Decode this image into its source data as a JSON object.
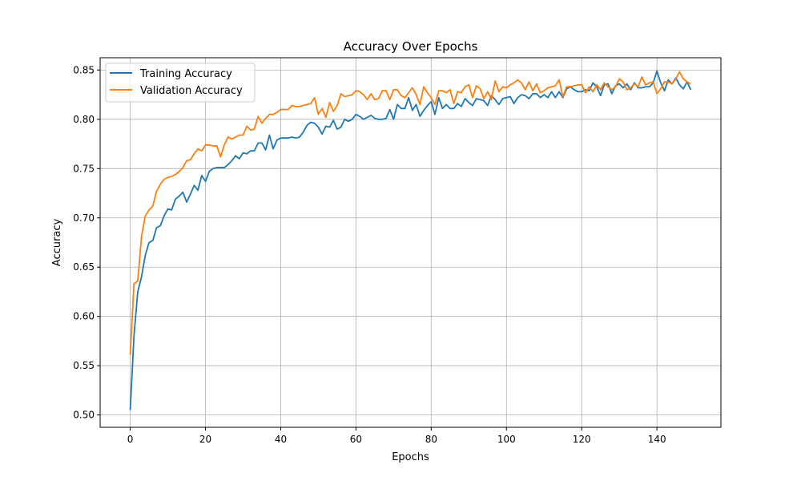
{
  "chart_data": {
    "type": "line",
    "title": "Accuracy Over Epochs",
    "xlabel": "Epochs",
    "ylabel": "Accuracy",
    "xlim": [
      -8,
      157
    ],
    "ylim": [
      0.4875,
      0.8625
    ],
    "xticks": [
      0,
      20,
      40,
      60,
      80,
      100,
      120,
      140
    ],
    "yticks": [
      0.5,
      0.55,
      0.6,
      0.65,
      0.7,
      0.75,
      0.8,
      0.85
    ],
    "grid": true,
    "legend_position": "top-left",
    "series": [
      {
        "name": "Training Accuracy",
        "color": "#1f77b4",
        "values": [
          0.505,
          0.58,
          0.625,
          0.64,
          0.662,
          0.675,
          0.677,
          0.69,
          0.692,
          0.702,
          0.709,
          0.708,
          0.719,
          0.722,
          0.726,
          0.716,
          0.724,
          0.733,
          0.728,
          0.743,
          0.737,
          0.747,
          0.75,
          0.751,
          0.751,
          0.751,
          0.754,
          0.758,
          0.763,
          0.76,
          0.766,
          0.765,
          0.768,
          0.768,
          0.776,
          0.776,
          0.769,
          0.784,
          0.77,
          0.779,
          0.781,
          0.781,
          0.781,
          0.782,
          0.781,
          0.782,
          0.787,
          0.794,
          0.797,
          0.796,
          0.792,
          0.785,
          0.793,
          0.792,
          0.799,
          0.79,
          0.792,
          0.8,
          0.798,
          0.8,
          0.805,
          0.803,
          0.8,
          0.802,
          0.804,
          0.801,
          0.8,
          0.8,
          0.801,
          0.81,
          0.8,
          0.815,
          0.811,
          0.811,
          0.822,
          0.809,
          0.815,
          0.803,
          0.809,
          0.814,
          0.818,
          0.805,
          0.822,
          0.811,
          0.815,
          0.811,
          0.811,
          0.816,
          0.813,
          0.821,
          0.817,
          0.814,
          0.821,
          0.82,
          0.819,
          0.814,
          0.824,
          0.82,
          0.815,
          0.821,
          0.822,
          0.823,
          0.816,
          0.822,
          0.825,
          0.824,
          0.821,
          0.826,
          0.826,
          0.822,
          0.825,
          0.822,
          0.828,
          0.822,
          0.828,
          0.822,
          0.831,
          0.833,
          0.83,
          0.828,
          0.828,
          0.83,
          0.829,
          0.837,
          0.833,
          0.824,
          0.835,
          0.836,
          0.826,
          0.834,
          0.836,
          0.832,
          0.836,
          0.83,
          0.837,
          0.832,
          0.832,
          0.833,
          0.833,
          0.837,
          0.849,
          0.837,
          0.829,
          0.84,
          0.836,
          0.842,
          0.835,
          0.831,
          0.838,
          0.83
        ]
      },
      {
        "name": "Validation Accuracy",
        "color": "#ff7f0e",
        "values": [
          0.561,
          0.633,
          0.636,
          0.681,
          0.702,
          0.708,
          0.712,
          0.727,
          0.734,
          0.739,
          0.741,
          0.742,
          0.744,
          0.747,
          0.751,
          0.758,
          0.759,
          0.765,
          0.77,
          0.768,
          0.774,
          0.774,
          0.773,
          0.773,
          0.762,
          0.774,
          0.782,
          0.78,
          0.782,
          0.784,
          0.784,
          0.793,
          0.789,
          0.79,
          0.803,
          0.796,
          0.801,
          0.805,
          0.805,
          0.807,
          0.81,
          0.81,
          0.81,
          0.814,
          0.813,
          0.813,
          0.814,
          0.815,
          0.816,
          0.822,
          0.805,
          0.811,
          0.802,
          0.817,
          0.808,
          0.814,
          0.826,
          0.823,
          0.824,
          0.825,
          0.829,
          0.828,
          0.825,
          0.82,
          0.826,
          0.82,
          0.821,
          0.829,
          0.829,
          0.82,
          0.83,
          0.83,
          0.824,
          0.822,
          0.827,
          0.832,
          0.825,
          0.815,
          0.833,
          0.827,
          0.822,
          0.815,
          0.829,
          0.829,
          0.827,
          0.83,
          0.816,
          0.828,
          0.827,
          0.833,
          0.835,
          0.822,
          0.834,
          0.831,
          0.821,
          0.828,
          0.82,
          0.839,
          0.828,
          0.833,
          0.832,
          0.835,
          0.837,
          0.84,
          0.837,
          0.83,
          0.838,
          0.829,
          0.836,
          0.827,
          0.829,
          0.832,
          0.833,
          0.834,
          0.84,
          0.823,
          0.833,
          0.833,
          0.834,
          0.835,
          0.835,
          0.827,
          0.833,
          0.828,
          0.835,
          0.83,
          0.837,
          0.833,
          0.83,
          0.833,
          0.841,
          0.838,
          0.83,
          0.832,
          0.836,
          0.833,
          0.843,
          0.835,
          0.837,
          0.838,
          0.826,
          0.831,
          0.838,
          0.838,
          0.836,
          0.841,
          0.848,
          0.841,
          0.838,
          0.836
        ]
      }
    ]
  }
}
